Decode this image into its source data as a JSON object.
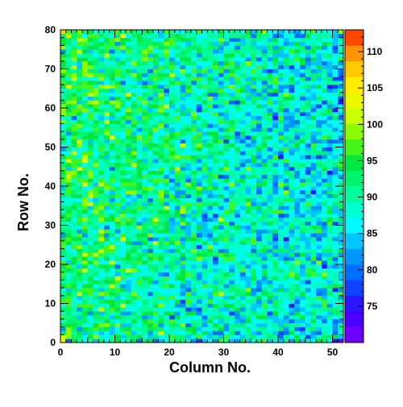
{
  "chart_data": {
    "type": "heatmap",
    "title": "",
    "xlabel": "Column No.",
    "ylabel": "Row No.",
    "x_range": [
      0,
      52
    ],
    "y_range": [
      0,
      80
    ],
    "x_ticks": [
      0,
      10,
      20,
      30,
      40,
      50
    ],
    "y_ticks": [
      0,
      10,
      20,
      30,
      40,
      50,
      60,
      70,
      80
    ],
    "columns": 52,
    "rows": 80,
    "z_range": [
      70,
      113
    ],
    "colorbar_ticks": [
      75,
      80,
      85,
      90,
      95,
      100,
      105,
      110
    ],
    "grid": false,
    "trend": {
      "left_columns_mean": 92,
      "right_columns_mean": 86,
      "noise_amplitude": 7,
      "corner_values": {
        "bottom_left": 104,
        "top_left": 108,
        "bottom_right": 72,
        "top_right": 100
      }
    }
  }
}
